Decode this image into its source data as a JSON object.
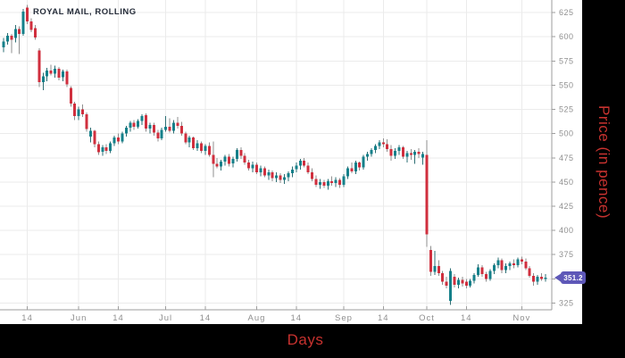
{
  "chart_data": {
    "type": "candlestick",
    "title": "ROYAL MAIL, ROLLING",
    "xlabel": "Days",
    "ylabel": "Price (in pence)",
    "last_price_label": "351.2",
    "last_price": 351.2,
    "grid": true,
    "legend_position": "none",
    "ylim": [
      318,
      638
    ],
    "yticks": [
      325,
      350,
      375,
      400,
      425,
      450,
      475,
      500,
      525,
      550,
      575,
      600,
      625
    ],
    "xticks": [
      {
        "i": 6,
        "label": "14"
      },
      {
        "i": 19,
        "label": "Jun"
      },
      {
        "i": 29,
        "label": "14"
      },
      {
        "i": 41,
        "label": "Jul"
      },
      {
        "i": 51,
        "label": "14"
      },
      {
        "i": 64,
        "label": "Aug"
      },
      {
        "i": 74,
        "label": "14"
      },
      {
        "i": 86,
        "label": "Sep"
      },
      {
        "i": 96,
        "label": "14"
      },
      {
        "i": 107,
        "label": "Oct"
      },
      {
        "i": 117,
        "label": "14"
      },
      {
        "i": 131,
        "label": "Nov"
      }
    ],
    "ohlc": [
      [
        589,
        599,
        584,
        595
      ],
      [
        595,
        604,
        592,
        601
      ],
      [
        601,
        603,
        583,
        597
      ],
      [
        599,
        612,
        594,
        608
      ],
      [
        608,
        611,
        582,
        603
      ],
      [
        603,
        629,
        601,
        626
      ],
      [
        630,
        633,
        613,
        616
      ],
      [
        616,
        619,
        605,
        607
      ],
      [
        609,
        612,
        597,
        599
      ],
      [
        586,
        588,
        548,
        553
      ],
      [
        553,
        563,
        545,
        559
      ],
      [
        559,
        568,
        554,
        565
      ],
      [
        565,
        571,
        560,
        562
      ],
      [
        562,
        570,
        558,
        567
      ],
      [
        567,
        569,
        555,
        558
      ],
      [
        558,
        566,
        554,
        564
      ],
      [
        564,
        566,
        548,
        551
      ],
      [
        547,
        549,
        528,
        531
      ],
      [
        531,
        533,
        514,
        518
      ],
      [
        518,
        528,
        514,
        525
      ],
      [
        525,
        530,
        517,
        520
      ],
      [
        520,
        522,
        502,
        505
      ],
      [
        497,
        506,
        491,
        503
      ],
      [
        503,
        504,
        486,
        489
      ],
      [
        489,
        492,
        478,
        481
      ],
      [
        481,
        488,
        477,
        486
      ],
      [
        486,
        489,
        479,
        482
      ],
      [
        482,
        492,
        480,
        490
      ],
      [
        490,
        498,
        487,
        496
      ],
      [
        496,
        500,
        489,
        492
      ],
      [
        492,
        502,
        490,
        500
      ],
      [
        500,
        508,
        497,
        506
      ],
      [
        506,
        513,
        502,
        511
      ],
      [
        511,
        514,
        504,
        507
      ],
      [
        507,
        515,
        505,
        513
      ],
      [
        513,
        520,
        509,
        518
      ],
      [
        519,
        521,
        502,
        505
      ],
      [
        505,
        511,
        500,
        509
      ],
      [
        509,
        511,
        498,
        501
      ],
      [
        501,
        504,
        492,
        495
      ],
      [
        495,
        506,
        493,
        504
      ],
      [
        504,
        518,
        502,
        507
      ],
      [
        507,
        516,
        501,
        503
      ],
      [
        503,
        514,
        500,
        511
      ],
      [
        511,
        517,
        505,
        508
      ],
      [
        508,
        512,
        498,
        500
      ],
      [
        500,
        502,
        489,
        491
      ],
      [
        491,
        498,
        486,
        496
      ],
      [
        496,
        497,
        483,
        485
      ],
      [
        485,
        493,
        482,
        490
      ],
      [
        490,
        492,
        480,
        482
      ],
      [
        482,
        489,
        478,
        487
      ],
      [
        487,
        491,
        476,
        478
      ],
      [
        478,
        492,
        455,
        469
      ],
      [
        469,
        475,
        464,
        466
      ],
      [
        466,
        473,
        462,
        471
      ],
      [
        471,
        478,
        467,
        476
      ],
      [
        476,
        479,
        466,
        469
      ],
      [
        469,
        476,
        465,
        474
      ],
      [
        474,
        485,
        471,
        483
      ],
      [
        483,
        486,
        474,
        477
      ],
      [
        477,
        480,
        468,
        470
      ],
      [
        470,
        473,
        462,
        464
      ],
      [
        464,
        471,
        460,
        468
      ],
      [
        468,
        470,
        458,
        460
      ],
      [
        460,
        467,
        456,
        464
      ],
      [
        464,
        466,
        455,
        457
      ],
      [
        457,
        463,
        452,
        460
      ],
      [
        460,
        462,
        451,
        454
      ],
      [
        454,
        460,
        450,
        457
      ],
      [
        457,
        459,
        449,
        452
      ],
      [
        452,
        458,
        448,
        455
      ],
      [
        455,
        461,
        451,
        459
      ],
      [
        459,
        466,
        455,
        463
      ],
      [
        463,
        470,
        460,
        467
      ],
      [
        467,
        474,
        463,
        472
      ],
      [
        472,
        475,
        465,
        467
      ],
      [
        467,
        470,
        458,
        460
      ],
      [
        460,
        464,
        451,
        453
      ],
      [
        453,
        457,
        445,
        447
      ],
      [
        447,
        453,
        443,
        450
      ],
      [
        450,
        452,
        444,
        446
      ],
      [
        446,
        453,
        442,
        451
      ],
      [
        451,
        456,
        446,
        449
      ],
      [
        449,
        455,
        445,
        452
      ],
      [
        452,
        454,
        444,
        447
      ],
      [
        447,
        458,
        445,
        456
      ],
      [
        456,
        466,
        453,
        464
      ],
      [
        464,
        470,
        459,
        461
      ],
      [
        461,
        472,
        458,
        470
      ],
      [
        470,
        471,
        462,
        465
      ],
      [
        465,
        478,
        463,
        476
      ],
      [
        476,
        481,
        472,
        479
      ],
      [
        479,
        485,
        476,
        483
      ],
      [
        483,
        489,
        480,
        487
      ],
      [
        487,
        493,
        484,
        491
      ],
      [
        491,
        495,
        486,
        489
      ],
      [
        489,
        494,
        481,
        484
      ],
      [
        484,
        488,
        472,
        477
      ],
      [
        477,
        485,
        474,
        482
      ],
      [
        482,
        488,
        478,
        486
      ],
      [
        486,
        487,
        474,
        476
      ],
      [
        476,
        482,
        470,
        480
      ],
      [
        480,
        484,
        473,
        478
      ],
      [
        478,
        483,
        469,
        481
      ],
      [
        481,
        485,
        475,
        479
      ],
      [
        475,
        481,
        468,
        479
      ],
      [
        478,
        493,
        383,
        396
      ],
      [
        380,
        384,
        353,
        357
      ],
      [
        357,
        379,
        354,
        363
      ],
      [
        363,
        369,
        353,
        356
      ],
      [
        356,
        358,
        344,
        347
      ],
      [
        347,
        352,
        340,
        343
      ],
      [
        327,
        361,
        323,
        358
      ],
      [
        352,
        355,
        341,
        344
      ],
      [
        344,
        351,
        340,
        349
      ],
      [
        349,
        352,
        342,
        345
      ],
      [
        347,
        350,
        340,
        343
      ],
      [
        343,
        350,
        341,
        348
      ],
      [
        348,
        356,
        345,
        354
      ],
      [
        354,
        365,
        352,
        362
      ],
      [
        362,
        364,
        352,
        355
      ],
      [
        355,
        357,
        347,
        350
      ],
      [
        350,
        360,
        348,
        358
      ],
      [
        358,
        366,
        355,
        364
      ],
      [
        364,
        372,
        361,
        369
      ],
      [
        369,
        371,
        356,
        359
      ],
      [
        359,
        366,
        356,
        363
      ],
      [
        363,
        368,
        359,
        366
      ],
      [
        366,
        370,
        361,
        364
      ],
      [
        364,
        372,
        362,
        370
      ],
      [
        370,
        373,
        365,
        368
      ],
      [
        368,
        371,
        359,
        361
      ],
      [
        361,
        363,
        351,
        353
      ],
      [
        353,
        356,
        343,
        347
      ],
      [
        347,
        354,
        344,
        352
      ],
      [
        352,
        356,
        348,
        350
      ],
      [
        350,
        355,
        347,
        351.2
      ]
    ],
    "colors": {
      "up": "#15808a",
      "down": "#d02f3e",
      "up_wick": "#2e6f74",
      "down_wick": "#8f8f8f",
      "grid": "#ebebeb",
      "axis": "#9e9e9e",
      "tick_label": "#8f8f8f",
      "title": "#262d3a",
      "axis_title": "#c8322f",
      "tag_bg": "#5e58b8",
      "tag_text": "#ffffff",
      "panel_bg": "#ffffff",
      "frame_bg": "#000000"
    }
  }
}
